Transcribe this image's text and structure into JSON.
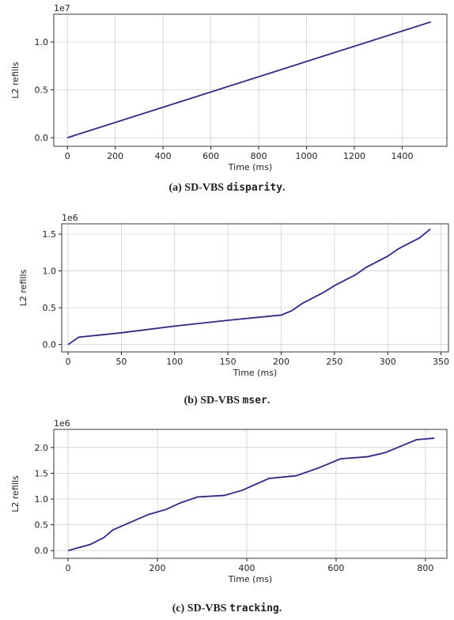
{
  "chart_data": [
    {
      "type": "line",
      "offset_label": "1e7",
      "xlabel": "Time (ms)",
      "ylabel": "L2 refills",
      "x": [
        0,
        1520
      ],
      "series": [
        {
          "name": "L2 refills",
          "color": "#3a1f9c",
          "values": [
            0,
            1.21
          ]
        }
      ],
      "xlim": [
        -57,
        1587
      ],
      "xticks": [
        0,
        200,
        400,
        600,
        800,
        1000,
        1200,
        1400
      ],
      "ylim": [
        -0.09,
        1.29
      ],
      "yticks": [
        {
          "value": 0,
          "label": "0.0"
        },
        {
          "value": 0.5,
          "label": "0.5"
        },
        {
          "value": 1,
          "label": "1.0"
        }
      ],
      "grid": true,
      "caption": {
        "prefix": "(a) SD-VBS ",
        "code": "disparity",
        "suffix": "."
      }
    },
    {
      "type": "line",
      "offset_label": "1e6",
      "xlabel": "Time (ms)",
      "ylabel": "L2 refills",
      "x": [
        0,
        10,
        50,
        100,
        150,
        200,
        210,
        220,
        240,
        250,
        270,
        280,
        300,
        310,
        330,
        340
      ],
      "series": [
        {
          "name": "L2 refills",
          "color": "#3a1f9c",
          "values": [
            0,
            0.1,
            0.16,
            0.25,
            0.33,
            0.4,
            0.46,
            0.56,
            0.71,
            0.8,
            0.95,
            1.05,
            1.2,
            1.3,
            1.45,
            1.57
          ]
        }
      ],
      "xlim": [
        -6,
        357
      ],
      "xticks": [
        0,
        50,
        100,
        150,
        200,
        250,
        300,
        350
      ],
      "ylim": [
        -0.1,
        1.64
      ],
      "yticks": [
        {
          "value": 0,
          "label": "0.0"
        },
        {
          "value": 0.5,
          "label": "0.5"
        },
        {
          "value": 1,
          "label": "1.0"
        },
        {
          "value": 1.5,
          "label": "1.5"
        }
      ],
      "grid": true,
      "caption": {
        "prefix": "(b) SD-VBS ",
        "code": "mser",
        "suffix": "."
      }
    },
    {
      "type": "line",
      "offset_label": "1e6",
      "xlabel": "Time (ms)",
      "ylabel": "L2 refills",
      "x": [
        0,
        50,
        80,
        100,
        140,
        180,
        220,
        250,
        290,
        350,
        390,
        450,
        510,
        560,
        610,
        670,
        710,
        780,
        820
      ],
      "series": [
        {
          "name": "L2 refills",
          "color": "#3a1f9c",
          "values": [
            0,
            0.12,
            0.25,
            0.4,
            0.55,
            0.7,
            0.8,
            0.92,
            1.04,
            1.07,
            1.17,
            1.4,
            1.45,
            1.6,
            1.78,
            1.82,
            1.9,
            2.15,
            2.18
          ]
        }
      ],
      "xlim": [
        -32,
        848
      ],
      "xticks": [
        0,
        200,
        400,
        600,
        800
      ],
      "ylim": [
        -0.15,
        2.35
      ],
      "yticks": [
        {
          "value": 0,
          "label": "0.0"
        },
        {
          "value": 0.5,
          "label": "0.5"
        },
        {
          "value": 1,
          "label": "1.0"
        },
        {
          "value": 1.5,
          "label": "1.5"
        },
        {
          "value": 2,
          "label": "2.0"
        }
      ],
      "grid": true,
      "caption": {
        "prefix": "(c) SD-VBS ",
        "code": "tracking",
        "suffix": "."
      }
    }
  ]
}
